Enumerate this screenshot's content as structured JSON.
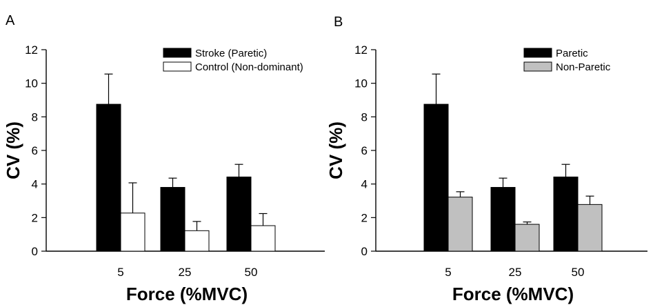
{
  "chart_data": [
    {
      "type": "bar",
      "panel_label": "A",
      "categories": [
        "5",
        "25",
        "50"
      ],
      "xlabel": "Force (%MVC)",
      "ylabel": "CV (%)",
      "ylim": [
        0,
        12
      ],
      "yticks": [
        "0",
        "2",
        "4",
        "6",
        "8",
        "10",
        "12"
      ],
      "grid": false,
      "legend_position": "top-right",
      "series": [
        {
          "name": "Stroke (Paretic)",
          "color": "#000000",
          "values": [
            8.75,
            3.8,
            4.42
          ],
          "errors": [
            1.8,
            0.55,
            0.75
          ]
        },
        {
          "name": "Control (Non-dominant)",
          "color": "#ffffff",
          "values": [
            2.27,
            1.22,
            1.52
          ],
          "errors": [
            1.8,
            0.55,
            0.72
          ]
        }
      ]
    },
    {
      "type": "bar",
      "panel_label": "B",
      "categories": [
        "5",
        "25",
        "50"
      ],
      "xlabel": "Force (%MVC)",
      "ylabel": "CV (%)",
      "ylim": [
        0,
        12
      ],
      "yticks": [
        "0",
        "2",
        "4",
        "6",
        "8",
        "10",
        "12"
      ],
      "grid": false,
      "legend_position": "top-right",
      "series": [
        {
          "name": "Paretic",
          "color": "#000000",
          "values": [
            8.75,
            3.8,
            4.42
          ],
          "errors": [
            1.8,
            0.55,
            0.75
          ]
        },
        {
          "name": "Non-Paretic",
          "color": "#c0c0c0",
          "values": [
            3.22,
            1.6,
            2.78
          ],
          "errors": [
            0.32,
            0.14,
            0.5
          ]
        }
      ]
    }
  ]
}
